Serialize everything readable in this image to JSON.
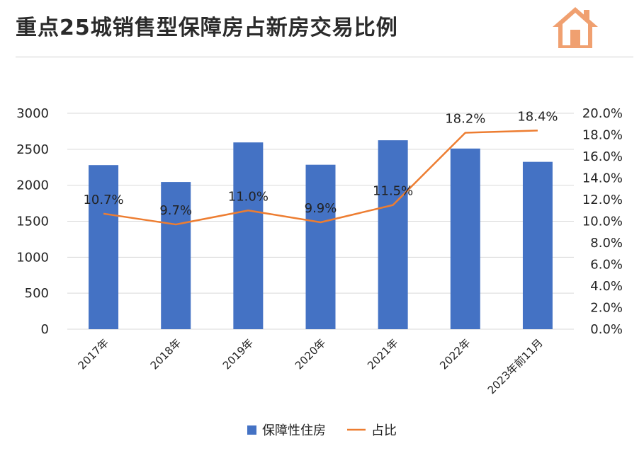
{
  "title": "重点25城销售型保障房占新房交易比例",
  "colors": {
    "bar": "#4472c4",
    "line": "#ed7d31",
    "grid": "#d9d9d9",
    "icon": "#f0a070"
  },
  "icons": {
    "header": "house-icon"
  },
  "chart_data": {
    "type": "bar",
    "categories": [
      "2017年",
      "2018年",
      "2019年",
      "2020年",
      "2021年",
      "2022年",
      "2023年前11月"
    ],
    "series": [
      {
        "name": "保障性住房",
        "type": "bar",
        "axis": "left",
        "values": [
          2280,
          2045,
          2595,
          2285,
          2625,
          2510,
          2325
        ]
      },
      {
        "name": "占比",
        "type": "line",
        "axis": "right",
        "values": [
          10.7,
          9.7,
          11.0,
          9.9,
          11.5,
          18.2,
          18.4
        ],
        "labels": [
          "10.7%",
          "9.7%",
          "11.0%",
          "9.9%",
          "11.5%",
          "18.2%",
          "18.4%"
        ]
      }
    ],
    "y_left": {
      "ylim": [
        0,
        3000
      ],
      "ticks": [
        "0",
        "500",
        "1000",
        "1500",
        "2000",
        "2500",
        "3000"
      ]
    },
    "y_right": {
      "ylim": [
        0,
        20
      ],
      "ticks": [
        "0.0%",
        "2.0%",
        "4.0%",
        "6.0%",
        "8.0%",
        "10.0%",
        "12.0%",
        "14.0%",
        "16.0%",
        "18.0%",
        "20.0%"
      ]
    },
    "grid": true,
    "legend_position": "bottom"
  }
}
